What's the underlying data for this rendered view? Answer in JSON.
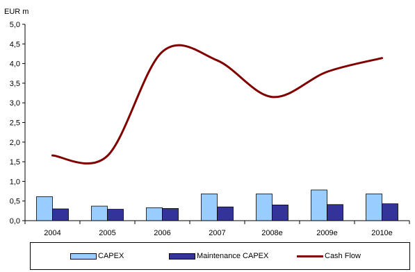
{
  "chart_data": {
    "type": "bar",
    "ylabel": "EUR m",
    "ylim": [
      0,
      5
    ],
    "yticks": [
      "0,0",
      "0,5",
      "1,0",
      "1,5",
      "2,0",
      "2,5",
      "3,0",
      "3,5",
      "4,0",
      "4,5",
      "5,0"
    ],
    "categories": [
      "2004",
      "2005",
      "2006",
      "2007",
      "2008e",
      "2009e",
      "2010e"
    ],
    "series": [
      {
        "name": "CAPEX",
        "kind": "bar",
        "color": "#99ccff",
        "values": [
          0.61,
          0.37,
          0.33,
          0.68,
          0.68,
          0.78,
          0.68
        ]
      },
      {
        "name": "Maintenance CAPEX",
        "kind": "bar",
        "color": "#333399",
        "values": [
          0.3,
          0.29,
          0.31,
          0.35,
          0.4,
          0.41,
          0.43
        ]
      },
      {
        "name": "Cash Flow",
        "kind": "line",
        "color": "#800000",
        "values": [
          1.66,
          1.65,
          4.3,
          4.08,
          3.15,
          3.79,
          4.14
        ]
      }
    ],
    "grid": false,
    "legend": "bottom"
  }
}
